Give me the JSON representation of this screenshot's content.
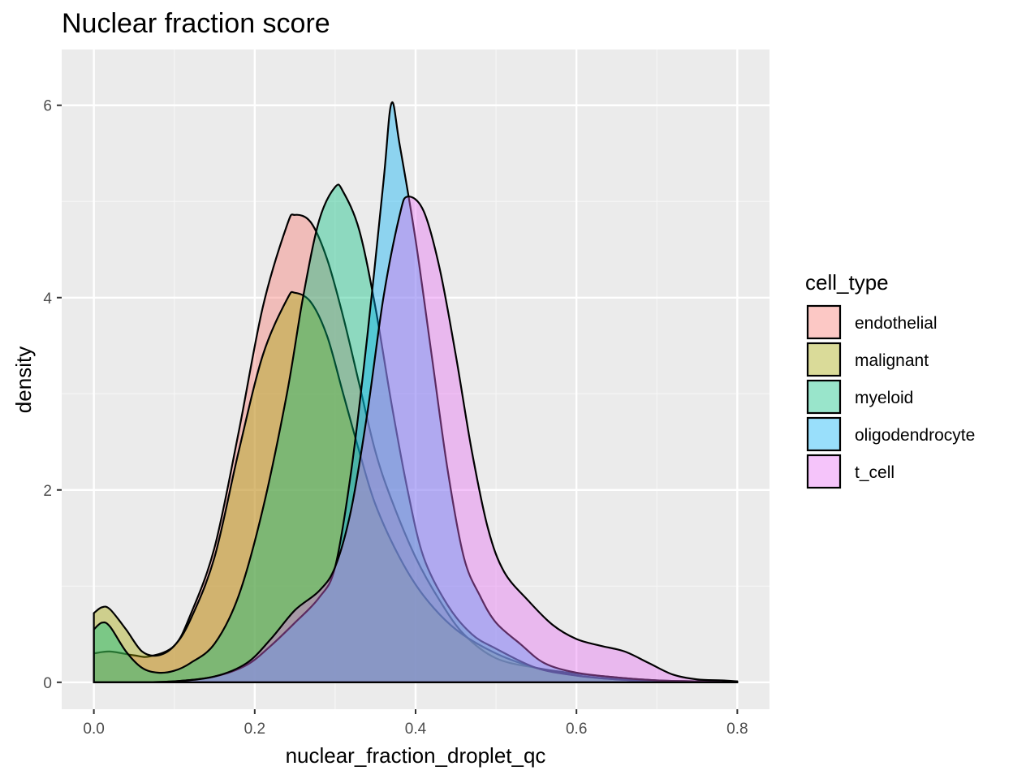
{
  "chart_data": {
    "type": "area",
    "title": "Nuclear fraction score",
    "xlabel": "nuclear_fraction_droplet_qc",
    "ylabel": "density",
    "xlim": [
      -0.04,
      0.84
    ],
    "ylim": [
      -0.28,
      6.58
    ],
    "x_ticks": [
      0.0,
      0.2,
      0.4,
      0.6,
      0.8
    ],
    "x_tick_labels": [
      "0.0",
      "0.2",
      "0.4",
      "0.6",
      "0.8"
    ],
    "y_ticks": [
      0,
      2,
      4,
      6
    ],
    "y_tick_labels": [
      "0",
      "2",
      "4",
      "6"
    ],
    "grid": true,
    "legend_title": "cell_type",
    "legend_position": "right",
    "series": [
      {
        "name": "endothelial",
        "color": "#F8766D",
        "points": [
          [
            0.0,
            0.3
          ],
          [
            0.02,
            0.32
          ],
          [
            0.05,
            0.28
          ],
          [
            0.07,
            0.27
          ],
          [
            0.1,
            0.38
          ],
          [
            0.12,
            0.7
          ],
          [
            0.15,
            1.4
          ],
          [
            0.18,
            2.6
          ],
          [
            0.21,
            3.9
          ],
          [
            0.24,
            4.75
          ],
          [
            0.25,
            4.86
          ],
          [
            0.27,
            4.78
          ],
          [
            0.29,
            4.4
          ],
          [
            0.31,
            3.8
          ],
          [
            0.33,
            3.1
          ],
          [
            0.35,
            2.4
          ],
          [
            0.37,
            1.9
          ],
          [
            0.4,
            1.3
          ],
          [
            0.43,
            0.85
          ],
          [
            0.46,
            0.5
          ],
          [
            0.5,
            0.25
          ],
          [
            0.55,
            0.15
          ],
          [
            0.6,
            0.09
          ],
          [
            0.65,
            0.05
          ],
          [
            0.7,
            0.02
          ],
          [
            0.75,
            0.01
          ],
          [
            0.8,
            0.0
          ]
        ]
      },
      {
        "name": "malignant",
        "color": "#A3A500",
        "points": [
          [
            0.0,
            0.72
          ],
          [
            0.01,
            0.78
          ],
          [
            0.02,
            0.76
          ],
          [
            0.04,
            0.55
          ],
          [
            0.06,
            0.32
          ],
          [
            0.08,
            0.28
          ],
          [
            0.1,
            0.38
          ],
          [
            0.12,
            0.65
          ],
          [
            0.15,
            1.3
          ],
          [
            0.18,
            2.4
          ],
          [
            0.21,
            3.4
          ],
          [
            0.24,
            3.98
          ],
          [
            0.25,
            4.05
          ],
          [
            0.27,
            3.95
          ],
          [
            0.29,
            3.6
          ],
          [
            0.31,
            3.0
          ],
          [
            0.33,
            2.4
          ],
          [
            0.35,
            1.85
          ],
          [
            0.38,
            1.3
          ],
          [
            0.41,
            0.9
          ],
          [
            0.45,
            0.55
          ],
          [
            0.5,
            0.3
          ],
          [
            0.55,
            0.15
          ],
          [
            0.6,
            0.07
          ],
          [
            0.65,
            0.03
          ],
          [
            0.7,
            0.01
          ],
          [
            0.75,
            0.0
          ],
          [
            0.8,
            0.0
          ]
        ]
      },
      {
        "name": "myeloid",
        "color": "#00BF7D",
        "points": [
          [
            0.0,
            0.55
          ],
          [
            0.01,
            0.62
          ],
          [
            0.02,
            0.58
          ],
          [
            0.04,
            0.32
          ],
          [
            0.06,
            0.15
          ],
          [
            0.08,
            0.1
          ],
          [
            0.1,
            0.12
          ],
          [
            0.12,
            0.2
          ],
          [
            0.15,
            0.4
          ],
          [
            0.18,
            0.9
          ],
          [
            0.21,
            1.8
          ],
          [
            0.24,
            3.0
          ],
          [
            0.26,
            4.0
          ],
          [
            0.28,
            4.8
          ],
          [
            0.3,
            5.15
          ],
          [
            0.31,
            5.1
          ],
          [
            0.33,
            4.7
          ],
          [
            0.35,
            3.9
          ],
          [
            0.37,
            2.9
          ],
          [
            0.39,
            2.0
          ],
          [
            0.41,
            1.3
          ],
          [
            0.44,
            0.8
          ],
          [
            0.47,
            0.5
          ],
          [
            0.5,
            0.35
          ],
          [
            0.55,
            0.15
          ],
          [
            0.6,
            0.07
          ],
          [
            0.65,
            0.03
          ],
          [
            0.7,
            0.01
          ],
          [
            0.75,
            0.0
          ],
          [
            0.8,
            0.0
          ]
        ]
      },
      {
        "name": "oligodendrocyte",
        "color": "#00B0F6",
        "points": [
          [
            0.0,
            0.0
          ],
          [
            0.05,
            0.0
          ],
          [
            0.1,
            0.01
          ],
          [
            0.15,
            0.06
          ],
          [
            0.19,
            0.18
          ],
          [
            0.22,
            0.38
          ],
          [
            0.25,
            0.62
          ],
          [
            0.28,
            0.88
          ],
          [
            0.3,
            1.2
          ],
          [
            0.32,
            2.2
          ],
          [
            0.34,
            3.6
          ],
          [
            0.36,
            5.2
          ],
          [
            0.37,
            6.02
          ],
          [
            0.38,
            5.6
          ],
          [
            0.4,
            4.6
          ],
          [
            0.42,
            3.4
          ],
          [
            0.44,
            2.2
          ],
          [
            0.46,
            1.3
          ],
          [
            0.48,
            0.9
          ],
          [
            0.5,
            0.62
          ],
          [
            0.53,
            0.4
          ],
          [
            0.56,
            0.2
          ],
          [
            0.6,
            0.1
          ],
          [
            0.65,
            0.05
          ],
          [
            0.7,
            0.02
          ],
          [
            0.75,
            0.01
          ],
          [
            0.8,
            0.0
          ]
        ]
      },
      {
        "name": "t_cell",
        "color": "#E76BF3",
        "points": [
          [
            0.0,
            0.0
          ],
          [
            0.05,
            0.0
          ],
          [
            0.1,
            0.01
          ],
          [
            0.15,
            0.06
          ],
          [
            0.19,
            0.2
          ],
          [
            0.22,
            0.45
          ],
          [
            0.25,
            0.75
          ],
          [
            0.28,
            0.95
          ],
          [
            0.3,
            1.2
          ],
          [
            0.32,
            1.8
          ],
          [
            0.34,
            2.8
          ],
          [
            0.36,
            4.0
          ],
          [
            0.38,
            4.85
          ],
          [
            0.39,
            5.05
          ],
          [
            0.41,
            4.9
          ],
          [
            0.43,
            4.3
          ],
          [
            0.45,
            3.4
          ],
          [
            0.47,
            2.4
          ],
          [
            0.49,
            1.6
          ],
          [
            0.51,
            1.15
          ],
          [
            0.54,
            0.85
          ],
          [
            0.57,
            0.6
          ],
          [
            0.6,
            0.45
          ],
          [
            0.63,
            0.38
          ],
          [
            0.66,
            0.32
          ],
          [
            0.69,
            0.2
          ],
          [
            0.72,
            0.08
          ],
          [
            0.75,
            0.03
          ],
          [
            0.78,
            0.02
          ],
          [
            0.8,
            0.01
          ]
        ]
      }
    ]
  }
}
